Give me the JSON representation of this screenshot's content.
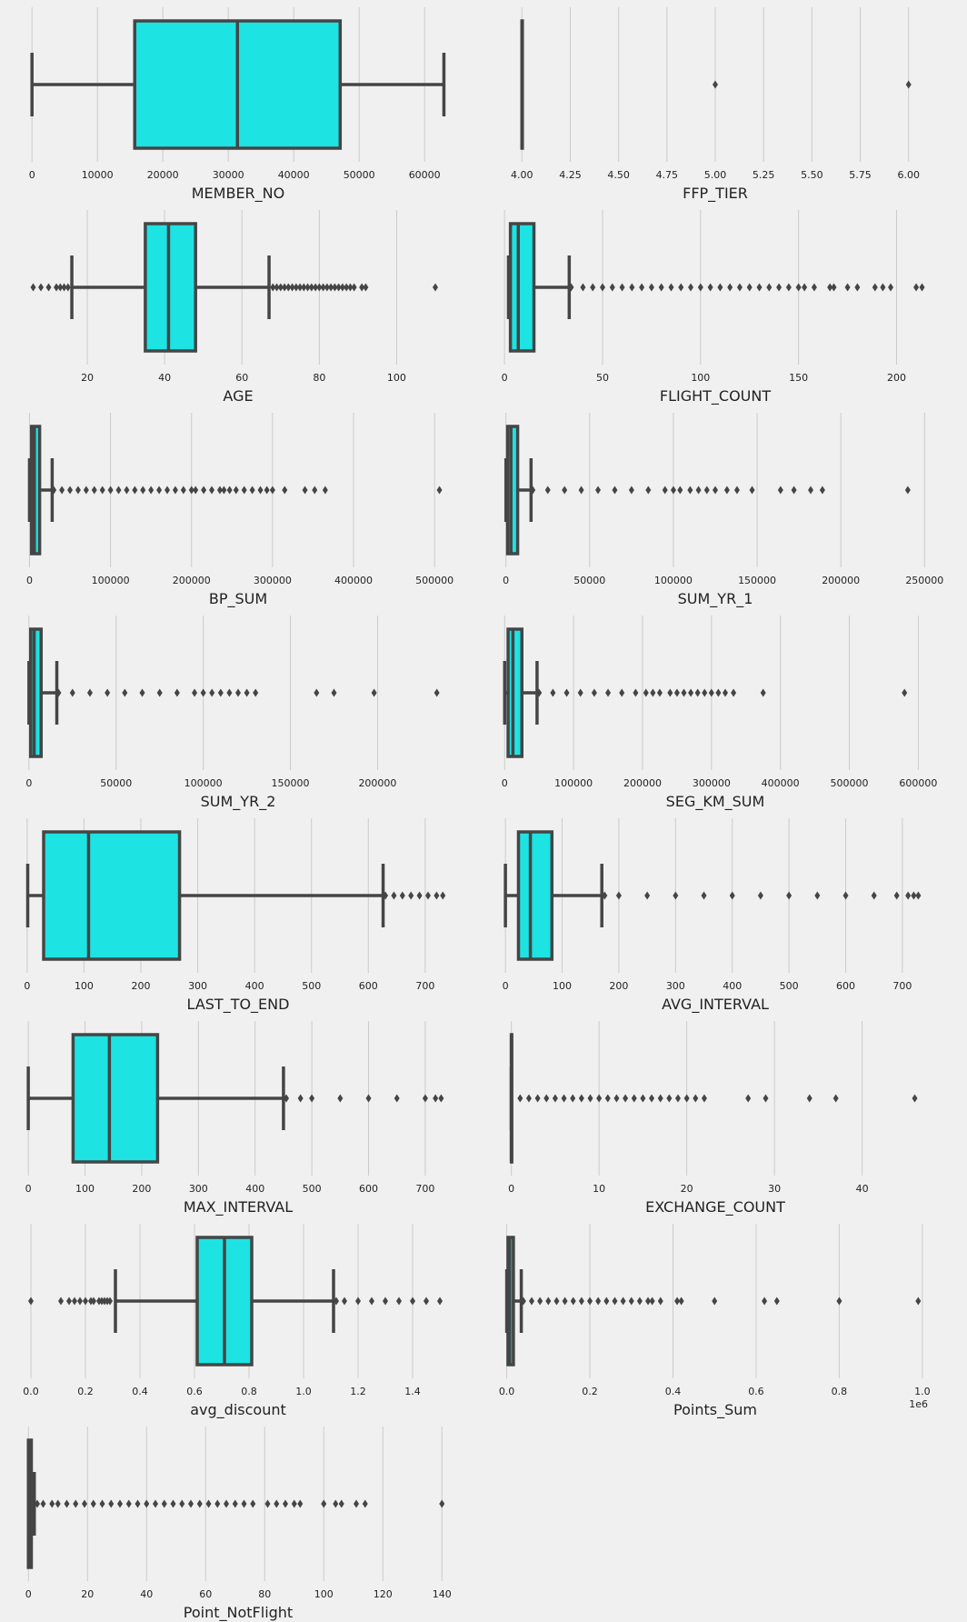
{
  "style": {
    "background": "#f0f0f0",
    "box_fill": "#1de3e3",
    "line_color": "#454545",
    "grid_color": "#cbcbcb",
    "text_color": "#222222"
  },
  "chart_data": [
    {
      "type": "box",
      "xlabel": "MEMBER_NO",
      "xlim": [
        -1000,
        64000
      ],
      "ticks": [
        0,
        10000,
        20000,
        30000,
        40000,
        50000,
        60000
      ],
      "tick_labels": [
        "0",
        "10000",
        "20000",
        "30000",
        "40000",
        "50000",
        "60000"
      ],
      "whisker_low": 0,
      "q1": 15700,
      "median": 31400,
      "q3": 47100,
      "whisker_high": 62950,
      "outliers": []
    },
    {
      "type": "box",
      "xlabel": "FFP_TIER",
      "xlim": [
        3.9,
        6.1
      ],
      "ticks": [
        4.0,
        4.25,
        4.5,
        4.75,
        5.0,
        5.25,
        5.5,
        5.75,
        6.0
      ],
      "tick_labels": [
        "4.00",
        "4.25",
        "4.50",
        "4.75",
        "5.00",
        "5.25",
        "5.50",
        "5.75",
        "6.00"
      ],
      "whisker_low": 4,
      "q1": 4,
      "median": 4,
      "q3": 4,
      "whisker_high": 4,
      "outliers": [
        5,
        6
      ]
    },
    {
      "type": "box",
      "xlabel": "AGE",
      "xlim": [
        4,
        114
      ],
      "ticks": [
        20,
        40,
        60,
        80,
        100
      ],
      "tick_labels": [
        "20",
        "40",
        "60",
        "80",
        "100"
      ],
      "whisker_low": 16,
      "q1": 35,
      "median": 41,
      "q3": 48,
      "whisker_high": 67,
      "outliers": [
        6,
        8,
        10,
        12,
        13,
        14,
        15,
        68,
        69,
        70,
        71,
        72,
        73,
        74,
        75,
        76,
        77,
        78,
        79,
        80,
        81,
        82,
        83,
        84,
        85,
        86,
        87,
        88,
        89,
        91,
        92,
        110
      ]
    },
    {
      "type": "box",
      "xlabel": "FLIGHT_COUNT",
      "xlim": [
        -1,
        216
      ],
      "ticks": [
        0,
        50,
        100,
        150,
        200
      ],
      "tick_labels": [
        "0",
        "50",
        "100",
        "150",
        "200"
      ],
      "whisker_low": 2,
      "q1": 3,
      "median": 7,
      "q3": 15,
      "whisker_high": 33,
      "outliers": [
        34,
        40,
        45,
        50,
        55,
        60,
        65,
        70,
        75,
        80,
        85,
        90,
        95,
        100,
        105,
        110,
        115,
        120,
        125,
        130,
        135,
        140,
        145,
        150,
        153,
        158,
        166,
        168,
        175,
        180,
        189,
        193,
        197,
        210,
        213
      ]
    },
    {
      "type": "box",
      "xlabel": "BP_SUM",
      "xlim": [
        -5000,
        520000
      ],
      "ticks": [
        0,
        100000,
        200000,
        300000,
        400000,
        500000
      ],
      "tick_labels": [
        "0",
        "100000",
        "200000",
        "300000",
        "400000",
        "500000"
      ],
      "whisker_low": 0,
      "q1": 2500,
      "median": 6000,
      "q3": 12500,
      "whisker_high": 28000,
      "outliers": [
        30000,
        40000,
        50000,
        60000,
        70000,
        80000,
        90000,
        100000,
        110000,
        120000,
        130000,
        140000,
        150000,
        160000,
        170000,
        180000,
        190000,
        200000,
        205000,
        215000,
        225000,
        235000,
        240000,
        247000,
        255000,
        265000,
        275000,
        285000,
        293000,
        300000,
        315000,
        340000,
        352000,
        365000,
        506000
      ]
    },
    {
      "type": "box",
      "xlabel": "SUM_YR_1",
      "xlim": [
        -2000,
        252000
      ],
      "ticks": [
        0,
        50000,
        100000,
        150000,
        200000,
        250000
      ],
      "tick_labels": [
        "0",
        "50000",
        "100000",
        "150000",
        "200000",
        "250000"
      ],
      "whisker_low": 0,
      "q1": 1000,
      "median": 3000,
      "q3": 7000,
      "whisker_high": 15000,
      "outliers": [
        16000,
        25000,
        35000,
        45000,
        55000,
        65000,
        75000,
        85000,
        95000,
        100000,
        104000,
        110000,
        115000,
        120000,
        125000,
        132000,
        138000,
        147000,
        164000,
        172000,
        182000,
        189000,
        240000
      ]
    },
    {
      "type": "box",
      "xlabel": "SUM_YR_2",
      "xlim": [
        -2000,
        242000
      ],
      "ticks": [
        0,
        50000,
        100000,
        150000,
        200000
      ],
      "tick_labels": [
        "0",
        "50000",
        "100000",
        "150000",
        "200000"
      ],
      "whisker_low": 0,
      "q1": 1000,
      "median": 3000,
      "q3": 7000,
      "whisker_high": 16000,
      "outliers": [
        17000,
        25000,
        35000,
        45000,
        55000,
        65000,
        75000,
        85000,
        95000,
        100000,
        105000,
        110000,
        115000,
        120000,
        125000,
        130000,
        165000,
        175000,
        198000,
        234000
      ]
    },
    {
      "type": "box",
      "xlabel": "SEG_KM_SUM",
      "xlim": [
        -3000,
        614000
      ],
      "ticks": [
        0,
        100000,
        200000,
        300000,
        400000,
        500000,
        600000
      ],
      "tick_labels": [
        "0",
        "100000",
        "200000",
        "300000",
        "400000",
        "500000",
        "600000"
      ],
      "whisker_low": 0,
      "q1": 5000,
      "median": 12000,
      "q3": 25000,
      "whisker_high": 47000,
      "outliers": [
        50000,
        70000,
        90000,
        110000,
        130000,
        150000,
        170000,
        190000,
        205000,
        215000,
        225000,
        240000,
        250000,
        260000,
        270000,
        280000,
        290000,
        300000,
        310000,
        320000,
        332000,
        375000,
        580000
      ]
    },
    {
      "type": "box",
      "xlabel": "LAST_TO_END",
      "xlim": [
        -3,
        745
      ],
      "ticks": [
        0,
        100,
        200,
        300,
        400,
        500,
        600,
        700
      ],
      "tick_labels": [
        "0",
        "100",
        "200",
        "300",
        "400",
        "500",
        "600",
        "700"
      ],
      "whisker_low": 1,
      "q1": 29,
      "median": 108,
      "q3": 268,
      "whisker_high": 626,
      "outliers": [
        630,
        645,
        660,
        675,
        690,
        705,
        720,
        731
      ]
    },
    {
      "type": "box",
      "xlabel": "AVG_INTERVAL",
      "xlim": [
        -5,
        745
      ],
      "ticks": [
        0,
        100,
        200,
        300,
        400,
        500,
        600,
        700
      ],
      "tick_labels": [
        "0",
        "100",
        "200",
        "300",
        "400",
        "500",
        "600",
        "700"
      ],
      "whisker_low": 0,
      "q1": 23,
      "median": 44,
      "q3": 82,
      "whisker_high": 170,
      "outliers": [
        175,
        200,
        250,
        300,
        350,
        400,
        450,
        500,
        550,
        600,
        650,
        690,
        710,
        720,
        728
      ]
    },
    {
      "type": "box",
      "xlabel": "MAX_INTERVAL",
      "xlim": [
        -5,
        745
      ],
      "ticks": [
        0,
        100,
        200,
        300,
        400,
        500,
        600,
        700
      ],
      "tick_labels": [
        "0",
        "100",
        "200",
        "300",
        "400",
        "500",
        "600",
        "700"
      ],
      "whisker_low": 0,
      "q1": 79,
      "median": 143,
      "q3": 228,
      "whisker_high": 450,
      "outliers": [
        455,
        480,
        500,
        550,
        600,
        650,
        700,
        718,
        728
      ]
    },
    {
      "type": "box",
      "xlabel": "EXCHANGE_COUNT",
      "xlim": [
        -1,
        47.5
      ],
      "ticks": [
        0,
        10,
        20,
        30,
        40
      ],
      "tick_labels": [
        "0",
        "10",
        "20",
        "30",
        "40"
      ],
      "whisker_low": 0,
      "q1": 0,
      "median": 0,
      "q3": 0,
      "whisker_high": 0,
      "outliers": [
        1,
        2,
        3,
        4,
        5,
        6,
        7,
        8,
        9,
        10,
        11,
        12,
        13,
        14,
        15,
        16,
        17,
        18,
        19,
        20,
        21,
        22,
        27,
        29,
        34,
        37,
        46
      ]
    },
    {
      "type": "box",
      "xlabel": "avg_discount",
      "xlim": [
        -0.02,
        1.54
      ],
      "ticks": [
        0.0,
        0.2,
        0.4,
        0.6,
        0.8,
        1.0,
        1.2,
        1.4
      ],
      "tick_labels": [
        "0.0",
        "0.2",
        "0.4",
        "0.6",
        "0.8",
        "1.0",
        "1.2",
        "1.4"
      ],
      "whisker_low": 0.31,
      "q1": 0.61,
      "median": 0.71,
      "q3": 0.81,
      "whisker_high": 1.11,
      "outliers": [
        0.0,
        0.11,
        0.14,
        0.16,
        0.18,
        0.2,
        0.22,
        0.23,
        0.25,
        0.26,
        0.27,
        0.28,
        0.29,
        1.12,
        1.15,
        1.2,
        1.25,
        1.3,
        1.35,
        1.4,
        1.45,
        1.5
      ]
    },
    {
      "type": "box",
      "xlabel": "Points_Sum",
      "xlim": [
        -0.01,
        1.0134
      ],
      "offset_label": "1e6",
      "ticks": [
        0.0,
        0.2,
        0.4,
        0.6,
        0.8,
        1.0
      ],
      "tick_labels": [
        "0.0",
        "0.2",
        "0.4",
        "0.6",
        "0.8",
        "1.0"
      ],
      "whisker_low": 0,
      "q1": 0.003,
      "median": 0.007,
      "q3": 0.016,
      "whisker_high": 0.035,
      "outliers": [
        0.04,
        0.06,
        0.08,
        0.1,
        0.12,
        0.14,
        0.16,
        0.18,
        0.2,
        0.22,
        0.24,
        0.26,
        0.28,
        0.3,
        0.32,
        0.34,
        0.35,
        0.37,
        0.41,
        0.42,
        0.5,
        0.62,
        0.65,
        0.8,
        0.99
      ]
    },
    {
      "type": "box",
      "xlabel": "Point_NotFlight",
      "xlim": [
        -1,
        143
      ],
      "ticks": [
        0,
        20,
        40,
        60,
        80,
        100,
        120,
        140
      ],
      "tick_labels": [
        "0",
        "20",
        "40",
        "60",
        "80",
        "100",
        "120",
        "140"
      ],
      "whisker_low": 0,
      "q1": 0,
      "median": 0,
      "q3": 1,
      "whisker_high": 2,
      "outliers": [
        3,
        5,
        8,
        10,
        13,
        16,
        19,
        22,
        25,
        28,
        31,
        34,
        37,
        40,
        43,
        46,
        49,
        52,
        55,
        58,
        61,
        64,
        67,
        70,
        73,
        76,
        81,
        84,
        87,
        90,
        92,
        100,
        104,
        106,
        111,
        114,
        140
      ]
    }
  ]
}
